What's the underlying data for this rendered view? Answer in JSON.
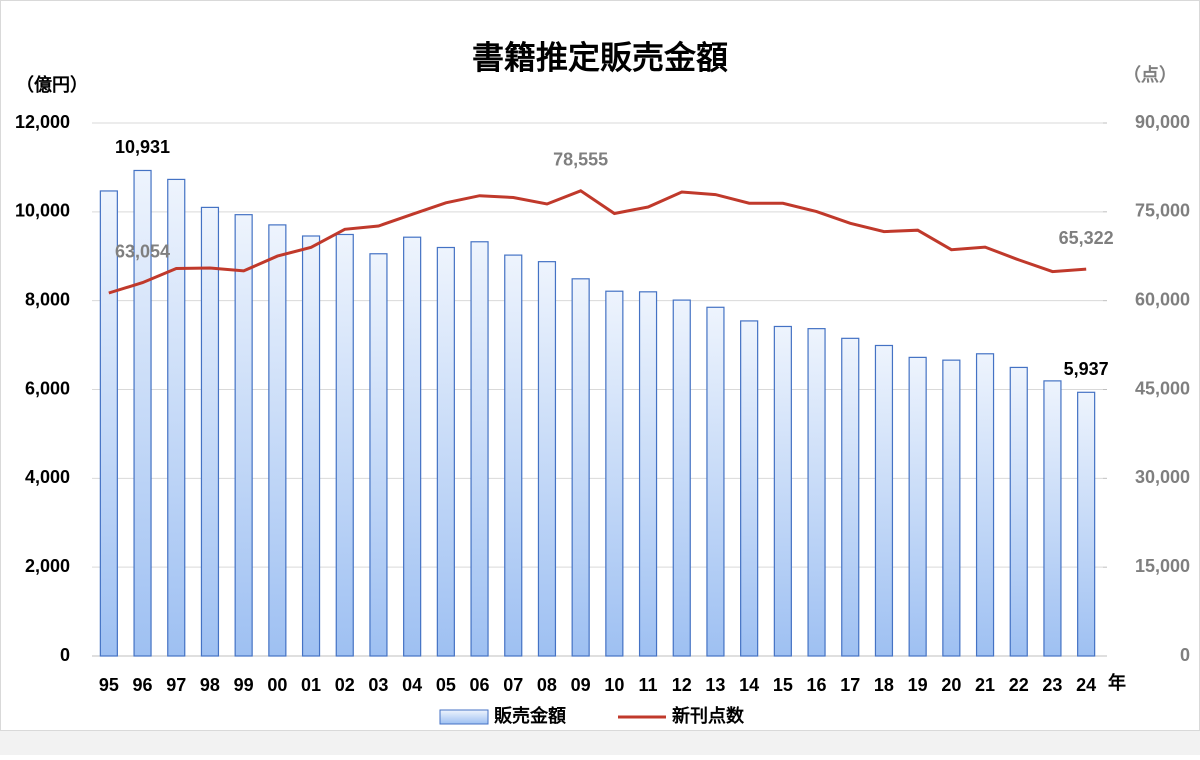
{
  "chart_data": {
    "type": "bar-line",
    "title": "書籍推定販売金額",
    "y_label": "（億円）",
    "y2_label": "（点）",
    "x_suffix": "年",
    "categories": [
      "95",
      "96",
      "97",
      "98",
      "99",
      "00",
      "01",
      "02",
      "03",
      "04",
      "05",
      "06",
      "07",
      "08",
      "09",
      "10",
      "11",
      "12",
      "13",
      "14",
      "15",
      "16",
      "17",
      "18",
      "19",
      "20",
      "21",
      "22",
      "23",
      "24"
    ],
    "series": [
      {
        "name": "販売金額",
        "type": "bar",
        "color": "#4472c4",
        "values": [
          10470,
          10931,
          10730,
          10100,
          9936,
          9706,
          9456,
          9490,
          9056,
          9429,
          9197,
          9326,
          9026,
          8878,
          8492,
          8213,
          8199,
          8013,
          7851,
          7544,
          7419,
          7370,
          7152,
          6991,
          6723,
          6661,
          6804,
          6497,
          6194,
          5937
        ],
        "value_labels": [
          null,
          "10,931",
          null,
          null,
          null,
          null,
          null,
          null,
          null,
          null,
          null,
          null,
          null,
          null,
          null,
          null,
          null,
          null,
          null,
          null,
          null,
          null,
          null,
          null,
          null,
          null,
          null,
          null,
          null,
          "5,937"
        ]
      },
      {
        "name": "新刊点数",
        "type": "line",
        "axis": "y2",
        "color": "#c0392b",
        "values": [
          61302,
          63054,
          65438,
          65513,
          65026,
          67522,
          69003,
          72055,
          72608,
          74587,
          76528,
          77722,
          77417,
          76322,
          78555,
          74714,
          75810,
          78349,
          77910,
          76465,
          76445,
          75039,
          73057,
          71661,
          71903,
          68608,
          69052,
          66885,
          64905,
          65322
        ],
        "value_labels": [
          null,
          "63,054",
          null,
          null,
          null,
          null,
          null,
          null,
          null,
          null,
          null,
          null,
          null,
          null,
          "78,555",
          null,
          null,
          null,
          null,
          null,
          null,
          null,
          null,
          null,
          null,
          null,
          null,
          null,
          null,
          "65,322"
        ]
      }
    ],
    "ylim": [
      0,
      12000
    ],
    "yticks": [
      0,
      {
        "value": 2000,
        "label": "2,000"
      },
      {
        "value": 4000,
        "label": "4,000"
      },
      {
        "value": 6000,
        "label": "6,000"
      },
      {
        "value": 8000,
        "label": "8,000"
      },
      {
        "value": 10000,
        "label": "10,000"
      },
      {
        "value": 12000,
        "label": "12,000"
      }
    ],
    "y2lim": [
      0,
      90000
    ],
    "y2ticks": [
      0,
      {
        "value": 15000,
        "label": "15,000"
      },
      {
        "value": 30000,
        "label": "30,000"
      },
      {
        "value": 45000,
        "label": "45,000"
      },
      {
        "value": 60000,
        "label": "60,000"
      },
      {
        "value": 75000,
        "label": "75,000"
      },
      {
        "value": 90000,
        "label": "90,000"
      }
    ],
    "grid": true
  }
}
